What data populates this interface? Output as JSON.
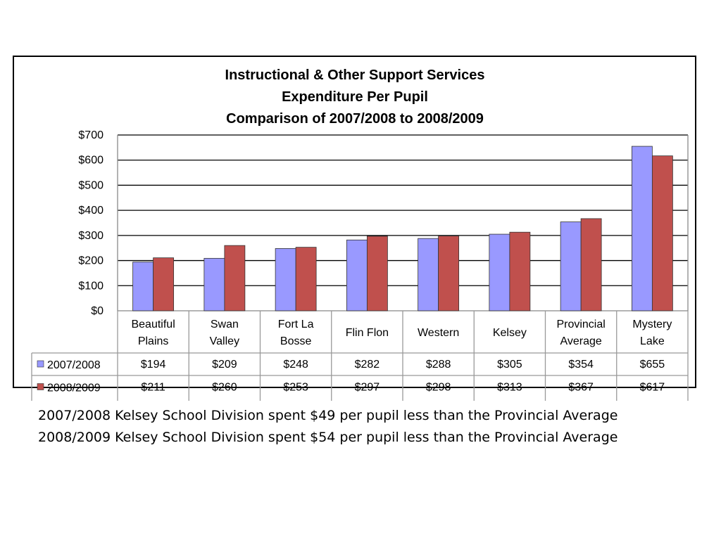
{
  "chart_data": {
    "type": "bar",
    "title_lines": [
      "Instructional & Other Support Services",
      "Expenditure Per Pupil",
      "Comparison of 2007/2008 to 2008/2009"
    ],
    "categories": [
      [
        "Beautiful",
        "Plains"
      ],
      [
        "Swan",
        "Valley"
      ],
      [
        "Fort La",
        "Bosse"
      ],
      [
        "Flin Flon"
      ],
      [
        "Western"
      ],
      [
        "Kelsey"
      ],
      [
        "Provincial",
        "Average"
      ],
      [
        "Mystery",
        "Lake"
      ]
    ],
    "series": [
      {
        "name": "2007/2008",
        "color": "#9999ff",
        "values": [
          194,
          209,
          248,
          282,
          288,
          305,
          354,
          655
        ],
        "labels": [
          "$194",
          "$209",
          "$248",
          "$282",
          "$288",
          "$305",
          "$354",
          "$655"
        ]
      },
      {
        "name": "2008/2009",
        "color": "#c0504d",
        "values": [
          211,
          260,
          253,
          297,
          298,
          313,
          367,
          617
        ],
        "labels": [
          "$211",
          "$260",
          "$253",
          "$297",
          "$298",
          "$313",
          "$367",
          "$617"
        ]
      }
    ],
    "ylim": [
      0,
      700
    ],
    "yticks": [
      0,
      100,
      200,
      300,
      400,
      500,
      600,
      700
    ],
    "ytick_labels": [
      "$0",
      "$100",
      "$200",
      "$300",
      "$400",
      "$500",
      "$600",
      "$700"
    ],
    "grid": true,
    "legend": "data-table-left"
  },
  "notes": [
    "2007/2008 Kelsey School Division spent $49 per pupil less than the Provincial Average",
    "2008/2009 Kelsey School Division spent $54 per pupil less than the Provincial Average"
  ]
}
